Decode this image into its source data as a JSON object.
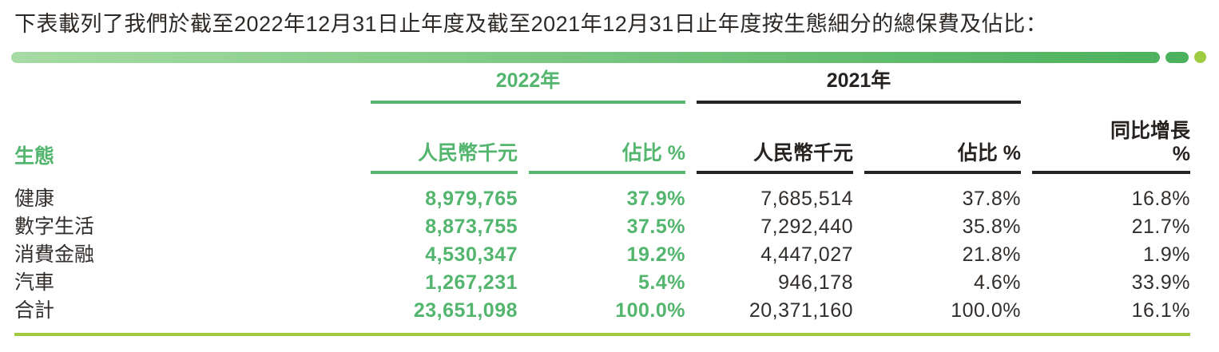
{
  "intro_text": "下表載列了我們於截至2022年12月31日止年度及截至2021年12月31日止年度按生態細分的總保費及佔比：",
  "divider": {
    "bar_gradient_start": "#a6dba4",
    "bar_gradient_end": "#4db25d",
    "pill_color": "#4db25d",
    "dot_color": "#9ecb3f"
  },
  "colors": {
    "accent_green": "#53b56e",
    "dark_text": "#262220",
    "body_text": "#322e2c",
    "lime_rule": "#9ecb3f"
  },
  "table": {
    "year_headers": {
      "y2022": "2022年",
      "y2021": "2021年"
    },
    "growth_header": {
      "line1": "同比增長",
      "line2": "%"
    },
    "col_headers": {
      "eco": "生態",
      "amount2022": "人民幣千元",
      "share2022": "佔比 %",
      "amount2021": "人民幣千元",
      "share2021": "佔比 %"
    },
    "rows": [
      {
        "eco": "健康",
        "amount2022": "8,979,765",
        "share2022": "37.9%",
        "amount2021": "7,685,514",
        "share2021": "37.8%",
        "growth": "16.8%"
      },
      {
        "eco": "數字生活",
        "amount2022": "8,873,755",
        "share2022": "37.5%",
        "amount2021": "7,292,440",
        "share2021": "35.8%",
        "growth": "21.7%"
      },
      {
        "eco": "消費金融",
        "amount2022": "4,530,347",
        "share2022": "19.2%",
        "amount2021": "4,447,027",
        "share2021": "21.8%",
        "growth": "1.9%"
      },
      {
        "eco": "汽車",
        "amount2022": "1,267,231",
        "share2022": "5.4%",
        "amount2021": "946,178",
        "share2021": "4.6%",
        "growth": "33.9%"
      },
      {
        "eco": "合計",
        "amount2022": "23,651,098",
        "share2022": "100.0%",
        "amount2021": "20,371,160",
        "share2021": "100.0%",
        "growth": "16.1%"
      }
    ]
  }
}
